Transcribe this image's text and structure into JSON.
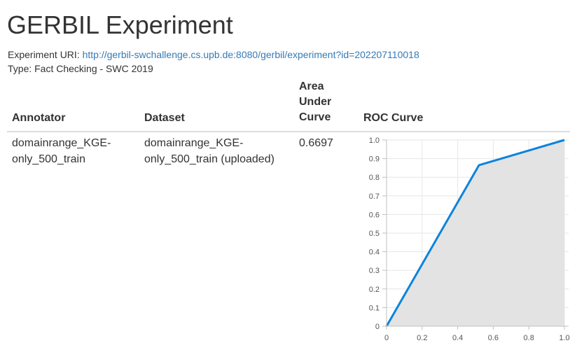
{
  "page": {
    "title": "GERBIL Experiment",
    "uri_label": "Experiment URI:",
    "uri": "http://gerbil-swchallenge.cs.upb.de:8080/gerbil/experiment?id=202207110018",
    "type_text": "Type: Fact Checking - SWC 2019"
  },
  "table": {
    "headers": {
      "annotator": "Annotator",
      "dataset": "Dataset",
      "auc_line1": "Area",
      "auc_line2": "Under",
      "auc_line3": "Curve",
      "roc": "ROC Curve"
    },
    "rows": [
      {
        "annotator_line1": "domainrange_KGE-",
        "annotator_line2": "only_500_train",
        "dataset_line1": "domainrange_KGE-",
        "dataset_line2": "only_500_train (uploaded)",
        "auc": "0.6697"
      }
    ]
  },
  "chart_data": {
    "type": "area",
    "x": [
      0,
      0.52,
      1.0
    ],
    "y": [
      0,
      0.865,
      1.0
    ],
    "xlim": [
      0,
      1.0
    ],
    "ylim": [
      0,
      1.0
    ],
    "xticks": [
      "0",
      "0.2",
      "0.4",
      "0.6",
      "0.8",
      "1.0"
    ],
    "yticks": [
      "0",
      "0.1",
      "0.2",
      "0.3",
      "0.4",
      "0.5",
      "0.6",
      "0.7",
      "0.8",
      "0.9",
      "1.0"
    ],
    "grid": true,
    "line_color": "#0b84dc",
    "fill_color": "#e3e3e3"
  }
}
